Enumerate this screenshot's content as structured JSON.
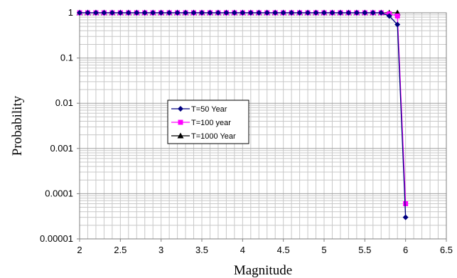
{
  "chart_data": {
    "type": "line",
    "xlabel": "Magnitude",
    "ylabel": "Probability",
    "xlim": [
      2,
      6.5
    ],
    "ylim": [
      1e-05,
      1
    ],
    "y_scale": "log",
    "x_ticks": [
      2,
      2.5,
      3,
      3.5,
      4,
      4.5,
      5,
      5.5,
      6,
      6.5
    ],
    "x_tick_labels": [
      "2",
      "2.5",
      "3",
      "3.5",
      "4",
      "4.5",
      "5",
      "5.5",
      "6",
      "6.5"
    ],
    "y_ticks": [
      1e-05,
      0.0001,
      0.001,
      0.01,
      0.1,
      1
    ],
    "y_tick_labels": [
      "0.00001",
      "0.0001",
      "0.001",
      "0.01",
      "0.1",
      "1"
    ],
    "grid": true,
    "legend_position": "left-center",
    "x": [
      2.0,
      2.1,
      2.2,
      2.3,
      2.4,
      2.5,
      2.6,
      2.7,
      2.8,
      2.9,
      3.0,
      3.1,
      3.2,
      3.3,
      3.4,
      3.5,
      3.6,
      3.7,
      3.8,
      3.9,
      4.0,
      4.1,
      4.2,
      4.3,
      4.4,
      4.5,
      4.6,
      4.7,
      4.8,
      4.9,
      5.0,
      5.1,
      5.2,
      5.3,
      5.4,
      5.5,
      5.6,
      5.7,
      5.8,
      5.9,
      6.0
    ],
    "series": [
      {
        "name": "T=50 Year",
        "color": "#000080",
        "marker": "diamond",
        "values": [
          1,
          1,
          1,
          1,
          1,
          1,
          1,
          1,
          1,
          1,
          1,
          1,
          1,
          1,
          1,
          1,
          1,
          1,
          1,
          1,
          1,
          1,
          1,
          1,
          1,
          1,
          1,
          1,
          1,
          1,
          1,
          1,
          1,
          1,
          1,
          1,
          1,
          1,
          0.85,
          0.55,
          3e-05
        ]
      },
      {
        "name": "T=100 year",
        "color": "#ff00ff",
        "marker": "square",
        "values": [
          1,
          1,
          1,
          1,
          1,
          1,
          1,
          1,
          1,
          1,
          1,
          1,
          1,
          1,
          1,
          1,
          1,
          1,
          1,
          1,
          1,
          1,
          1,
          1,
          1,
          1,
          1,
          1,
          1,
          1,
          1,
          1,
          1,
          1,
          1,
          1,
          1,
          1,
          0.95,
          0.85,
          6e-05
        ]
      },
      {
        "name": "T=1000 Year",
        "color": "#000000",
        "marker": "triangle",
        "values": [
          1,
          1,
          1,
          1,
          1,
          1,
          1,
          1,
          1,
          1,
          1,
          1,
          1,
          1,
          1,
          1,
          1,
          1,
          1,
          1,
          1,
          1,
          1,
          1,
          1,
          1,
          1,
          1,
          1,
          1,
          1,
          1,
          1,
          1,
          1,
          1,
          1,
          1,
          1,
          1,
          null
        ]
      }
    ]
  }
}
